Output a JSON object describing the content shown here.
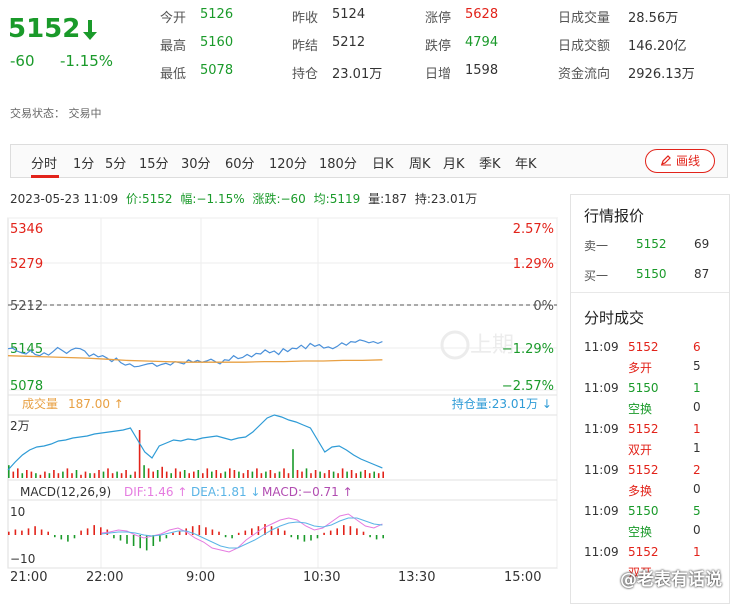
{
  "header": {
    "price": "5152",
    "change": "-60",
    "change_pct": "-1.15%",
    "stats": [
      {
        "label": "今开",
        "value": "5126",
        "color": "#1a9a2a"
      },
      {
        "label": "最高",
        "value": "5160",
        "color": "#1a9a2a"
      },
      {
        "label": "最低",
        "value": "5078",
        "color": "#1a9a2a"
      },
      {
        "label": "昨收",
        "value": "5124",
        "color": "#333333"
      },
      {
        "label": "昨结",
        "value": "5212",
        "color": "#333333"
      },
      {
        "label": "持仓",
        "value": "23.01万",
        "color": "#333333"
      },
      {
        "label": "涨停",
        "value": "5628",
        "color": "#e2231a"
      },
      {
        "label": "跌停",
        "value": "4794",
        "color": "#1a9a2a"
      },
      {
        "label": "日增",
        "value": "1598",
        "color": "#333333"
      },
      {
        "label": "日成交量",
        "value": "28.56万",
        "color": "#333333"
      },
      {
        "label": "日成交额",
        "value": "146.20亿",
        "color": "#333333"
      },
      {
        "label": "资金流向",
        "value": "2926.13万",
        "color": "#333333"
      }
    ],
    "status": "交易状态：  交易中"
  },
  "tabs": [
    "分时",
    "1分",
    "5分",
    "15分",
    "30分",
    "60分",
    "120分",
    "180分",
    "日K",
    "周K",
    "月K",
    "季K",
    "年K"
  ],
  "active_tab": "分时",
  "draw_button": "画线",
  "info_line": {
    "datetime": "2023-05-23 11:09",
    "price": "价:5152",
    "amp": "幅:−1.15%",
    "chg": "涨跌:−60",
    "avg": "均:5119",
    "vol": "量:187",
    "oi": "持:23.01万"
  },
  "main_chart": {
    "left_labels": [
      "5346",
      "5279",
      "5212",
      "5145",
      "5078"
    ],
    "right_labels": [
      "2.57%",
      "1.29%",
      "0%",
      "−1.29%",
      "−2.57%"
    ],
    "volume_label": "成交量",
    "volume_value": "187.00",
    "oi_value": "持仓量:23.01万",
    "vol_axis": "2万",
    "watermark": "上期"
  },
  "macd": {
    "label": "MACD(12,26,9)",
    "dif": "DIF:1.46",
    "dea": "DEA:1.81",
    "macd": "MACD:−0.71",
    "top": "10",
    "bottom": "−10"
  },
  "time_axis": [
    "21:00",
    "22:00",
    "9:00",
    "10:30",
    "13:30",
    "15:00"
  ],
  "quote_panel": {
    "title": "行情报价",
    "sell": {
      "label": "卖一",
      "price": "5152",
      "qty": "69"
    },
    "buy": {
      "label": "买一",
      "price": "5150",
      "qty": "87"
    },
    "trades_title": "分时成交",
    "trades": [
      {
        "time": "11:09",
        "price": "5152",
        "vol": "6",
        "type": "多开",
        "oi": "5",
        "color": "#e2231a"
      },
      {
        "time": "11:09",
        "price": "5150",
        "vol": "1",
        "type": "空换",
        "oi": "0",
        "color": "#1a9a2a"
      },
      {
        "time": "11:09",
        "price": "5152",
        "vol": "1",
        "type": "双开",
        "oi": "1",
        "color": "#e2231a"
      },
      {
        "time": "11:09",
        "price": "5152",
        "vol": "2",
        "type": "多换",
        "oi": "0",
        "color": "#e2231a"
      },
      {
        "time": "11:09",
        "price": "5150",
        "vol": "5",
        "type": "空换",
        "oi": "0",
        "color": "#1a9a2a"
      },
      {
        "time": "11:09",
        "price": "5152",
        "vol": "1",
        "type": "双开",
        "oi": "",
        "color": "#e2231a"
      }
    ]
  },
  "watermark_text": "@老表有话说"
}
